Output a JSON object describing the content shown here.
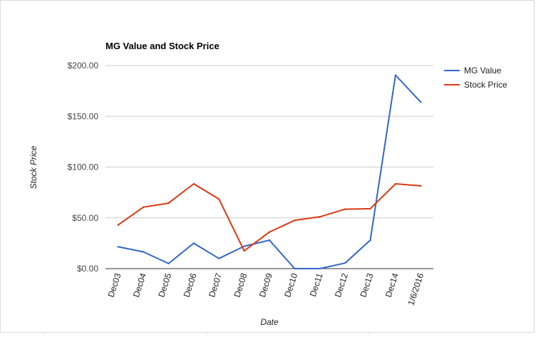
{
  "chart_data": {
    "type": "line",
    "title": "MG Value and Stock Price",
    "xlabel": "Date",
    "ylabel": "Stock Price",
    "categories": [
      "Dec03",
      "Dec04",
      "Dec05",
      "Dec06",
      "Dec07",
      "Dec08",
      "Dec09",
      "Dec10",
      "Dec11",
      "Dec12",
      "Dec13",
      "Dec14",
      "1/6/2016"
    ],
    "series": [
      {
        "name": "MG Value",
        "color": "#3366cc",
        "values": [
          21.5,
          16.5,
          5.0,
          25.0,
          10.0,
          22.0,
          28.0,
          0.0,
          0.0,
          5.5,
          28.0,
          190.5,
          164.0
        ]
      },
      {
        "name": "Stock Price",
        "color": "#dc3912",
        "values": [
          43.0,
          60.5,
          64.5,
          83.5,
          68.5,
          17.5,
          36.0,
          47.5,
          51.0,
          58.5,
          59.0,
          83.5,
          81.5
        ]
      }
    ],
    "yticks": [
      "$0.00",
      "$50.00",
      "$100.00",
      "$150.00",
      "$200.00"
    ],
    "ylim": [
      0,
      200
    ],
    "grid": true,
    "legend": "right"
  }
}
